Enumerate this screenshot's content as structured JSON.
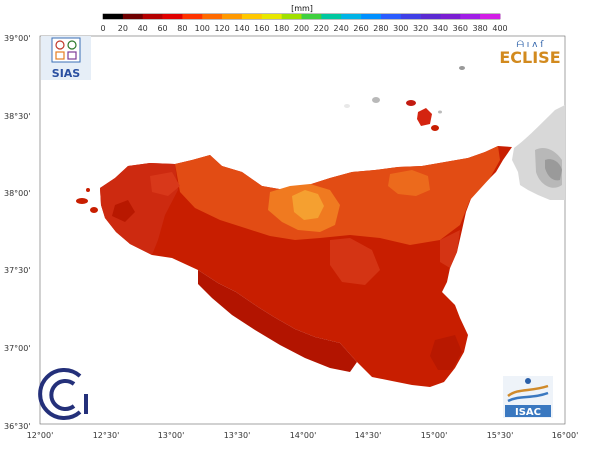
{
  "legend": {
    "unit": "[mm]",
    "ticks": [
      "0",
      "20",
      "40",
      "60",
      "80",
      "100",
      "120",
      "140",
      "160",
      "180",
      "200",
      "220",
      "240",
      "260",
      "280",
      "300",
      "320",
      "340",
      "360",
      "380",
      "400"
    ],
    "colors": [
      "#000000",
      "#6e0000",
      "#b40000",
      "#e00000",
      "#ff3300",
      "#ff6a00",
      "#ff9900",
      "#ffc800",
      "#e8e800",
      "#a0e000",
      "#40d040",
      "#00c8a0",
      "#00b4e6",
      "#0090ff",
      "#2a5cff",
      "#3f3fe6",
      "#5a2ad2",
      "#7a1ed2",
      "#a01ee6",
      "#d21ee6"
    ]
  },
  "axes": {
    "lat_labels": [
      "39°00'",
      "38°30'",
      "38°00'",
      "37°30'",
      "37°00'",
      "36°30'"
    ],
    "lon_labels": [
      "12°00'",
      "12°30'",
      "13°00'",
      "13°30'",
      "14°00'",
      "14°30'",
      "15°00'",
      "15°30'",
      "16°00'"
    ]
  },
  "logos": {
    "sias": "SIAS",
    "eclise_header": "ᗩ ı ᴧ ſ",
    "eclise": "ECLISE",
    "isac": "ISAC"
  },
  "colors": {
    "outer": "#c81e00",
    "west": "#cd2a10",
    "south": "#b21400",
    "north_band": "#e24c14",
    "hot": "#f07a20",
    "peak": "#f5a030"
  }
}
